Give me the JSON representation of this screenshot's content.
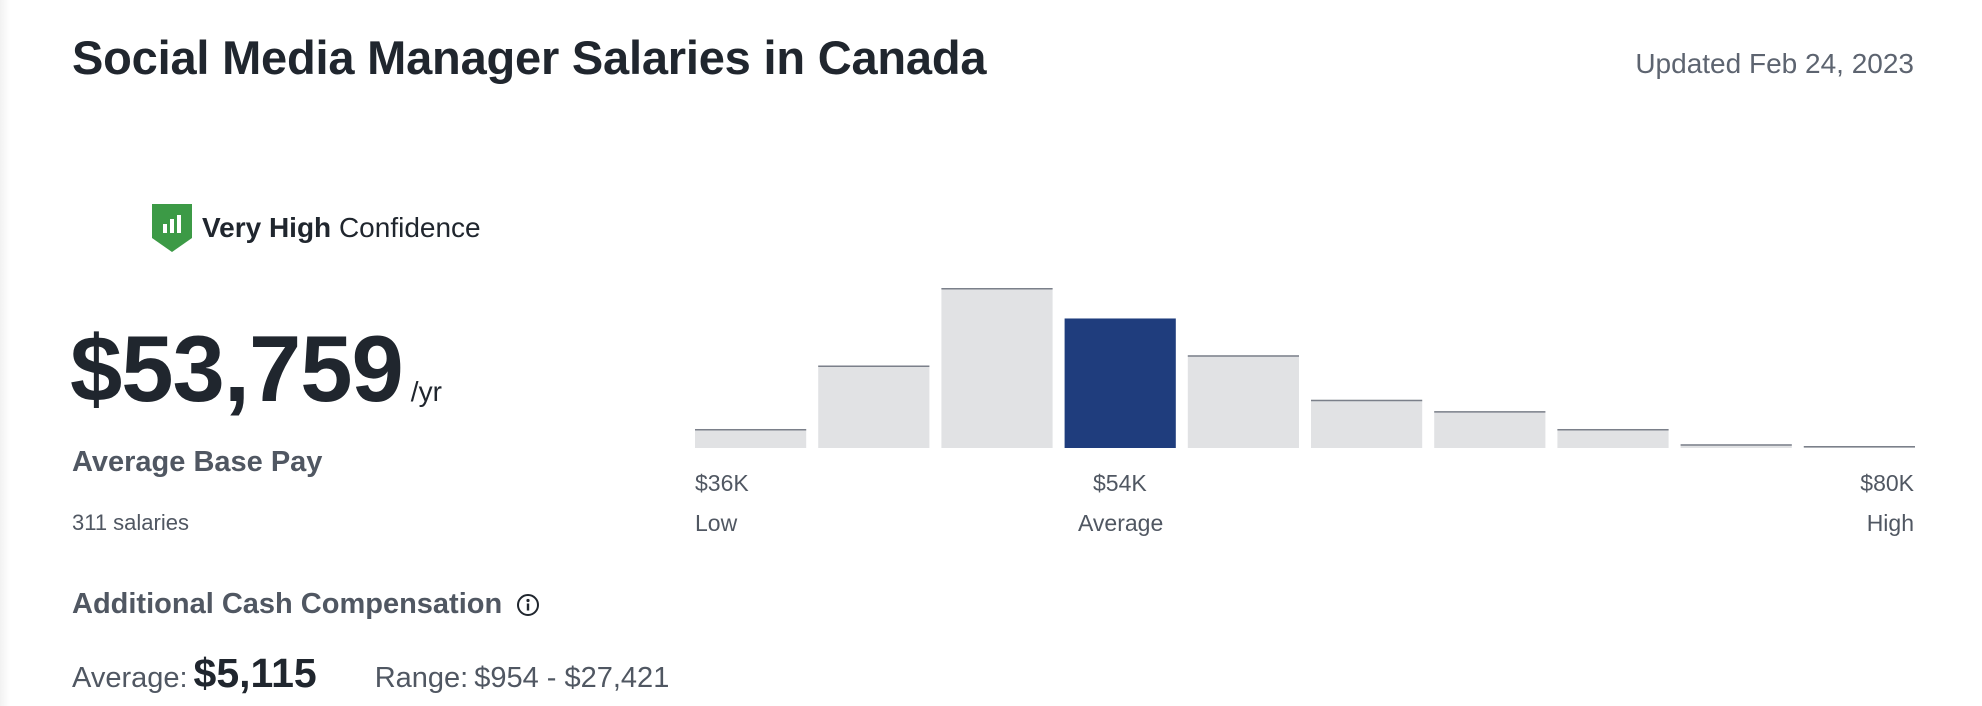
{
  "header": {
    "title": "Social Media Manager Salaries in Canada",
    "updated": "Updated Feb 24, 2023"
  },
  "confidence": {
    "level": "Very High",
    "label": "Confidence",
    "icon": "shield-chart-icon",
    "color": "#3c9a46"
  },
  "base_pay": {
    "amount": "$53,759",
    "unit": "/yr",
    "label": "Average Base Pay",
    "count": "311 salaries"
  },
  "additional_comp": {
    "label": "Additional Cash Compensation",
    "info_icon": "info-icon",
    "average_label": "Average:",
    "average_value": "$5,115",
    "range_label": "Range:",
    "range_value": "$954 - $27,421"
  },
  "chart_data": {
    "type": "bar",
    "values": [
      15,
      65,
      126,
      102,
      73,
      38,
      29,
      15,
      3,
      1
    ],
    "highlight_index": 3,
    "colors": {
      "bar": "#e1e2e4",
      "bar_top": "#7b808a",
      "highlight": "#1f3d7d"
    },
    "ticks": {
      "low_value": "$36K",
      "low_label": "Low",
      "avg_value": "$54K",
      "avg_label": "Average",
      "high_value": "$80K",
      "high_label": "High"
    }
  }
}
